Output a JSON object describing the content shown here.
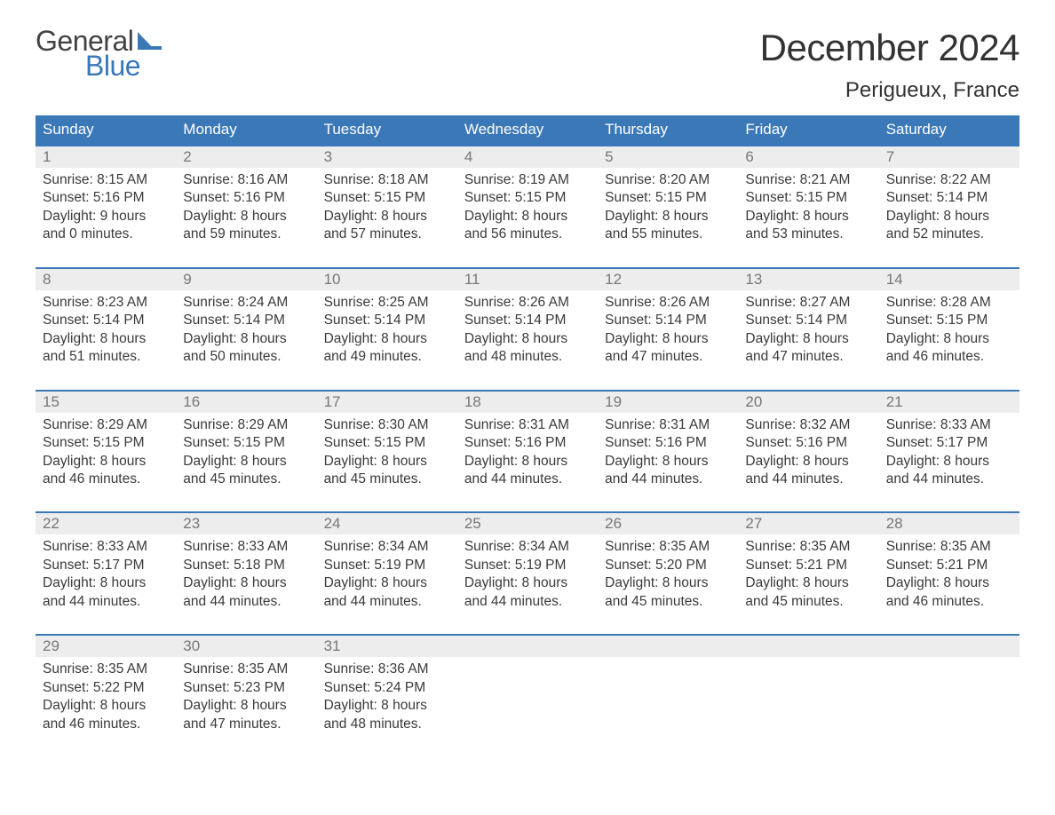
{
  "brand": {
    "line1": "General",
    "line2": "Blue",
    "color_text": "#424242",
    "color_accent": "#3a78b8"
  },
  "title": "December 2024",
  "location": "Perigueux, France",
  "colors": {
    "header_bg": "#3a78b8",
    "header_text": "#ffffff",
    "daynum_bg": "#ededed",
    "daynum_text": "#777777",
    "body_text": "#3a3a3a",
    "week_border": "#3a78b8",
    "page_bg": "#ffffff"
  },
  "typography": {
    "title_fontsize": 42,
    "location_fontsize": 24,
    "dow_fontsize": 17,
    "body_fontsize": 15.5
  },
  "days_of_week": [
    "Sunday",
    "Monday",
    "Tuesday",
    "Wednesday",
    "Thursday",
    "Friday",
    "Saturday"
  ],
  "weeks": [
    [
      {
        "n": "1",
        "sunrise": "8:15 AM",
        "sunset": "5:16 PM",
        "daylight_l1": "Daylight: 9 hours",
        "daylight_l2": "and 0 minutes."
      },
      {
        "n": "2",
        "sunrise": "8:16 AM",
        "sunset": "5:16 PM",
        "daylight_l1": "Daylight: 8 hours",
        "daylight_l2": "and 59 minutes."
      },
      {
        "n": "3",
        "sunrise": "8:18 AM",
        "sunset": "5:15 PM",
        "daylight_l1": "Daylight: 8 hours",
        "daylight_l2": "and 57 minutes."
      },
      {
        "n": "4",
        "sunrise": "8:19 AM",
        "sunset": "5:15 PM",
        "daylight_l1": "Daylight: 8 hours",
        "daylight_l2": "and 56 minutes."
      },
      {
        "n": "5",
        "sunrise": "8:20 AM",
        "sunset": "5:15 PM",
        "daylight_l1": "Daylight: 8 hours",
        "daylight_l2": "and 55 minutes."
      },
      {
        "n": "6",
        "sunrise": "8:21 AM",
        "sunset": "5:15 PM",
        "daylight_l1": "Daylight: 8 hours",
        "daylight_l2": "and 53 minutes."
      },
      {
        "n": "7",
        "sunrise": "8:22 AM",
        "sunset": "5:14 PM",
        "daylight_l1": "Daylight: 8 hours",
        "daylight_l2": "and 52 minutes."
      }
    ],
    [
      {
        "n": "8",
        "sunrise": "8:23 AM",
        "sunset": "5:14 PM",
        "daylight_l1": "Daylight: 8 hours",
        "daylight_l2": "and 51 minutes."
      },
      {
        "n": "9",
        "sunrise": "8:24 AM",
        "sunset": "5:14 PM",
        "daylight_l1": "Daylight: 8 hours",
        "daylight_l2": "and 50 minutes."
      },
      {
        "n": "10",
        "sunrise": "8:25 AM",
        "sunset": "5:14 PM",
        "daylight_l1": "Daylight: 8 hours",
        "daylight_l2": "and 49 minutes."
      },
      {
        "n": "11",
        "sunrise": "8:26 AM",
        "sunset": "5:14 PM",
        "daylight_l1": "Daylight: 8 hours",
        "daylight_l2": "and 48 minutes."
      },
      {
        "n": "12",
        "sunrise": "8:26 AM",
        "sunset": "5:14 PM",
        "daylight_l1": "Daylight: 8 hours",
        "daylight_l2": "and 47 minutes."
      },
      {
        "n": "13",
        "sunrise": "8:27 AM",
        "sunset": "5:14 PM",
        "daylight_l1": "Daylight: 8 hours",
        "daylight_l2": "and 47 minutes."
      },
      {
        "n": "14",
        "sunrise": "8:28 AM",
        "sunset": "5:15 PM",
        "daylight_l1": "Daylight: 8 hours",
        "daylight_l2": "and 46 minutes."
      }
    ],
    [
      {
        "n": "15",
        "sunrise": "8:29 AM",
        "sunset": "5:15 PM",
        "daylight_l1": "Daylight: 8 hours",
        "daylight_l2": "and 46 minutes."
      },
      {
        "n": "16",
        "sunrise": "8:29 AM",
        "sunset": "5:15 PM",
        "daylight_l1": "Daylight: 8 hours",
        "daylight_l2": "and 45 minutes."
      },
      {
        "n": "17",
        "sunrise": "8:30 AM",
        "sunset": "5:15 PM",
        "daylight_l1": "Daylight: 8 hours",
        "daylight_l2": "and 45 minutes."
      },
      {
        "n": "18",
        "sunrise": "8:31 AM",
        "sunset": "5:16 PM",
        "daylight_l1": "Daylight: 8 hours",
        "daylight_l2": "and 44 minutes."
      },
      {
        "n": "19",
        "sunrise": "8:31 AM",
        "sunset": "5:16 PM",
        "daylight_l1": "Daylight: 8 hours",
        "daylight_l2": "and 44 minutes."
      },
      {
        "n": "20",
        "sunrise": "8:32 AM",
        "sunset": "5:16 PM",
        "daylight_l1": "Daylight: 8 hours",
        "daylight_l2": "and 44 minutes."
      },
      {
        "n": "21",
        "sunrise": "8:33 AM",
        "sunset": "5:17 PM",
        "daylight_l1": "Daylight: 8 hours",
        "daylight_l2": "and 44 minutes."
      }
    ],
    [
      {
        "n": "22",
        "sunrise": "8:33 AM",
        "sunset": "5:17 PM",
        "daylight_l1": "Daylight: 8 hours",
        "daylight_l2": "and 44 minutes."
      },
      {
        "n": "23",
        "sunrise": "8:33 AM",
        "sunset": "5:18 PM",
        "daylight_l1": "Daylight: 8 hours",
        "daylight_l2": "and 44 minutes."
      },
      {
        "n": "24",
        "sunrise": "8:34 AM",
        "sunset": "5:19 PM",
        "daylight_l1": "Daylight: 8 hours",
        "daylight_l2": "and 44 minutes."
      },
      {
        "n": "25",
        "sunrise": "8:34 AM",
        "sunset": "5:19 PM",
        "daylight_l1": "Daylight: 8 hours",
        "daylight_l2": "and 44 minutes."
      },
      {
        "n": "26",
        "sunrise": "8:35 AM",
        "sunset": "5:20 PM",
        "daylight_l1": "Daylight: 8 hours",
        "daylight_l2": "and 45 minutes."
      },
      {
        "n": "27",
        "sunrise": "8:35 AM",
        "sunset": "5:21 PM",
        "daylight_l1": "Daylight: 8 hours",
        "daylight_l2": "and 45 minutes."
      },
      {
        "n": "28",
        "sunrise": "8:35 AM",
        "sunset": "5:21 PM",
        "daylight_l1": "Daylight: 8 hours",
        "daylight_l2": "and 46 minutes."
      }
    ],
    [
      {
        "n": "29",
        "sunrise": "8:35 AM",
        "sunset": "5:22 PM",
        "daylight_l1": "Daylight: 8 hours",
        "daylight_l2": "and 46 minutes."
      },
      {
        "n": "30",
        "sunrise": "8:35 AM",
        "sunset": "5:23 PM",
        "daylight_l1": "Daylight: 8 hours",
        "daylight_l2": "and 47 minutes."
      },
      {
        "n": "31",
        "sunrise": "8:36 AM",
        "sunset": "5:24 PM",
        "daylight_l1": "Daylight: 8 hours",
        "daylight_l2": "and 48 minutes."
      },
      null,
      null,
      null,
      null
    ]
  ],
  "labels": {
    "sunrise_prefix": "Sunrise: ",
    "sunset_prefix": "Sunset: "
  }
}
